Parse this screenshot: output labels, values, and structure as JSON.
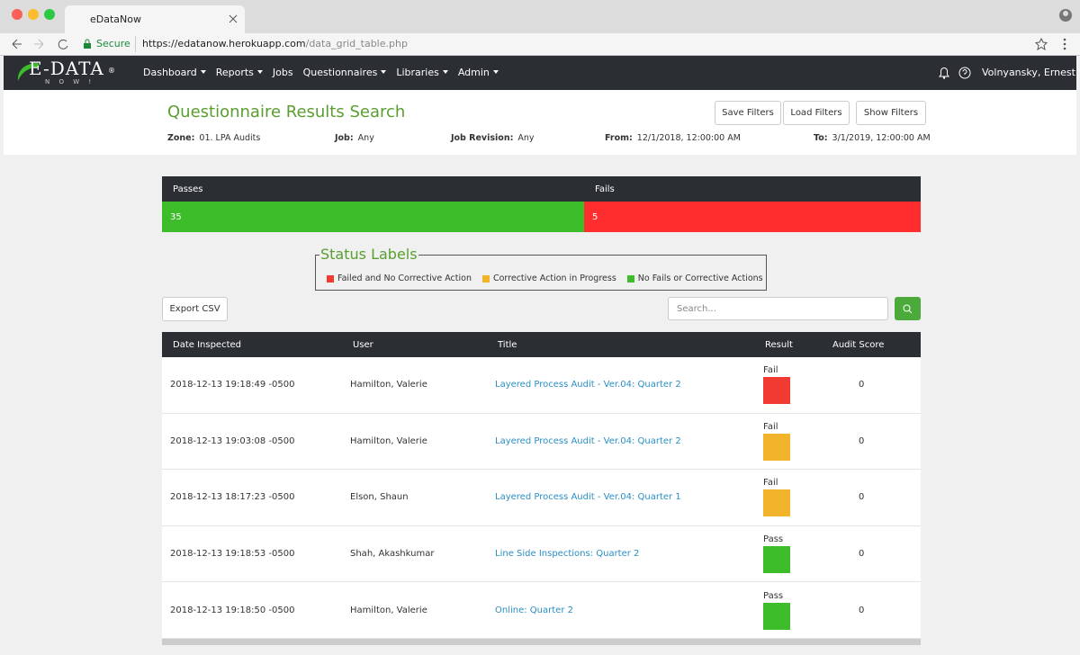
{
  "browser": {
    "tab_title": "eDataNow",
    "secure": "Secure",
    "url_host": "https://edatanow.herokuapp.com",
    "url_path": "/data_grid_table.php"
  },
  "nav": {
    "logo": "E-DATA",
    "logo_mark": "®",
    "logo_sub": "N O W !",
    "items": [
      "Dashboard",
      "Reports",
      "Jobs",
      "Questionnaires",
      "Libraries",
      "Admin"
    ],
    "dropdown": [
      true,
      true,
      false,
      true,
      true,
      true
    ],
    "user": "Volnyansky, Ernest"
  },
  "header": {
    "title": "Questionnaire Results Search",
    "buttons": [
      "Save Filters",
      "Load Filters",
      "Show Filters"
    ],
    "filters": [
      {
        "label": "Zone:",
        "value": "01. LPA Audits"
      },
      {
        "label": "Job:",
        "value": "Any"
      },
      {
        "label": "Job Revision:",
        "value": "Any"
      },
      {
        "label": "From:",
        "value": "12/1/2018, 12:00:00 AM"
      },
      {
        "label": "To:",
        "value": "3/1/2019, 12:00:00 AM"
      }
    ]
  },
  "summary": {
    "passes_label": "Passes",
    "fails_label": "Fails",
    "passes": 35,
    "fails": 5
  },
  "status_labels": {
    "title": "Status Labels",
    "items": [
      {
        "label": "Failed and No Corrective Action",
        "color": "#f03a32"
      },
      {
        "label": "Corrective Action in Progress",
        "color": "#f2b42a"
      },
      {
        "label": "No Fails or Corrective Actions",
        "color": "#3dbd2a"
      }
    ]
  },
  "toolbar": {
    "export": "Export CSV",
    "search_placeholder": "Search..."
  },
  "table": {
    "columns": [
      "Date Inspected",
      "User",
      "Title",
      "Result",
      "Audit Score"
    ],
    "rows": [
      {
        "date": "2018-12-13 19:18:49 -0500",
        "user": "Hamilton, Valerie",
        "title": "Layered Process Audit - Ver.04: Quarter 2",
        "result": "Fail",
        "color": "#f03a32",
        "score": 0
      },
      {
        "date": "2018-12-13 19:03:08 -0500",
        "user": "Hamilton, Valerie",
        "title": "Layered Process Audit - Ver.04: Quarter 2",
        "result": "Fail",
        "color": "#f2b42a",
        "score": 0
      },
      {
        "date": "2018-12-13 18:17:23 -0500",
        "user": "Elson, Shaun",
        "title": "Layered Process Audit - Ver.04: Quarter 1",
        "result": "Fail",
        "color": "#f2b42a",
        "score": 0
      },
      {
        "date": "2018-12-13 19:18:53 -0500",
        "user": "Shah, Akashkumar",
        "title": "Line Side Inspections: Quarter 2",
        "result": "Pass",
        "color": "#3dbd2a",
        "score": 0
      },
      {
        "date": "2018-12-13 19:18:50 -0500",
        "user": "Hamilton, Valerie",
        "title": "Online: Quarter 2",
        "result": "Pass",
        "color": "#3dbd2a",
        "score": 0
      }
    ]
  }
}
